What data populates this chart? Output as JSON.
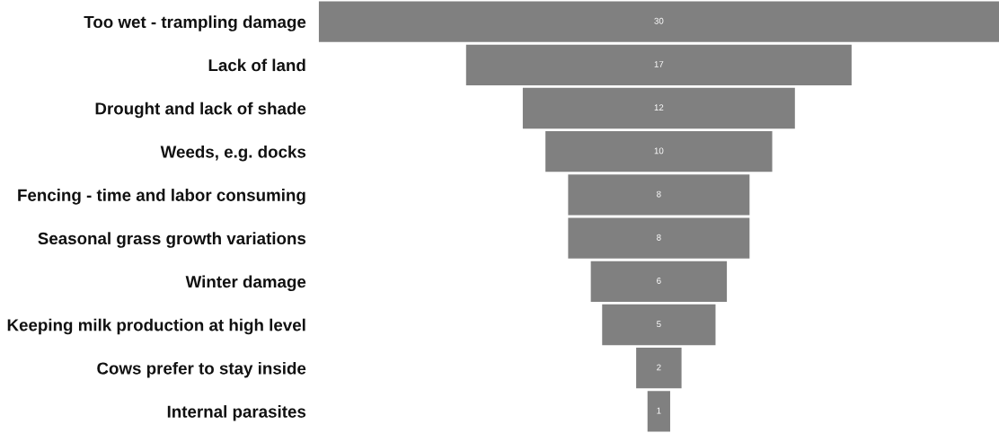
{
  "chart_data": {
    "type": "other",
    "categories": [
      "Too wet - trampling damage",
      "Lack of land",
      "Drought and lack of shade",
      "Weeds, e.g. docks",
      "Fencing - time and labor consuming",
      "Seasonal grass growth variations",
      "Winter damage",
      "Keeping milk production at high level",
      "Cows prefer to stay inside",
      "Internal parasites"
    ],
    "values": [
      30,
      17,
      12,
      10,
      8,
      8,
      6,
      5,
      2,
      1
    ],
    "color": "#808080",
    "data_labels": true
  }
}
